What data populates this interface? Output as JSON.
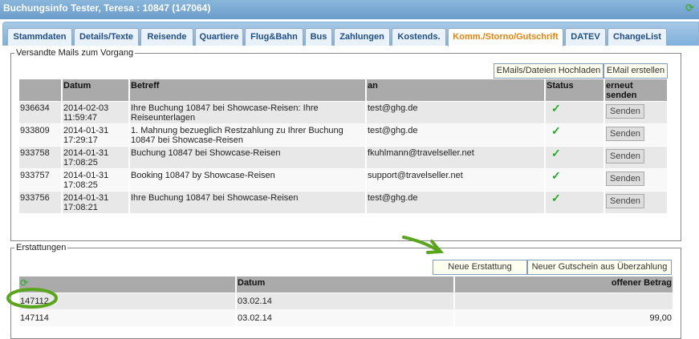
{
  "window": {
    "title": "Buchungsinfo Tester, Teresa : 10847 (147064)"
  },
  "tabs": [
    {
      "label": "Stammdaten"
    },
    {
      "label": "Details/Texte"
    },
    {
      "label": "Reisende"
    },
    {
      "label": "Quartiere"
    },
    {
      "label": "Flug&Bahn"
    },
    {
      "label": "Bus"
    },
    {
      "label": "Zahlungen"
    },
    {
      "label": "Kostends."
    },
    {
      "label": "Komm./Storno/Gutschrift",
      "active": true
    },
    {
      "label": "DATEV"
    },
    {
      "label": "ChangeList"
    }
  ],
  "mails": {
    "legend": "Versandte Mails zum Vorgang",
    "upload_label": "EMails/Dateien Hochladen",
    "create_label": "EMail erstellen",
    "headers": {
      "id": "",
      "datum": "Datum",
      "betreff": "Betreff",
      "an": "an",
      "status": "Status",
      "resend": "erneut senden"
    },
    "rows": [
      {
        "id": "936634",
        "datum": "2014-02-03 11:59:47",
        "betreff": "Ihre Buchung 10847 bei Showcase-Reisen: Ihre Reiseunterlagen",
        "an": "test@ghg.de",
        "status": "sent",
        "button": "Senden"
      },
      {
        "id": "933809",
        "datum": "2014-01-31 17:29:17",
        "betreff": "1. Mahnung bezueglich Restzahlung zu Ihrer Buchung 10847 bei Showcase-Reisen",
        "an": "test@ghg.de",
        "status": "sent",
        "button": "Senden"
      },
      {
        "id": "933758",
        "datum": "2014-01-31 17:08:25",
        "betreff": "Buchung 10847 bei Showcase-Reisen",
        "an": "fkuhlmann@travelseller.net",
        "status": "sent",
        "button": "Senden"
      },
      {
        "id": "933757",
        "datum": "2014-01-31 17:08:25",
        "betreff": "Booking 10847 by Showcase-Reisen",
        "an": "support@travelseller.net",
        "status": "sent",
        "button": "Senden"
      },
      {
        "id": "933756",
        "datum": "2014-01-31 17:08:21",
        "betreff": "Ihre Buchung 10847 bei Showcase-Reisen",
        "an": "test@ghg.de",
        "status": "sent",
        "button": "Senden"
      }
    ]
  },
  "refunds": {
    "legend": "Erstattungen",
    "new_refund_label": "Neue Erstattung",
    "new_voucher_label": "Neuer Gutschein aus Überzahlung",
    "headers": {
      "datum": "Datum",
      "betrag": "offener Betrag"
    },
    "rows": [
      {
        "id": "147112",
        "datum": "03.02.14",
        "betrag": ""
      },
      {
        "id": "147114",
        "datum": "03.02.14",
        "betrag": "99,00"
      }
    ]
  },
  "colors": {
    "accent": "#e8820c",
    "annotation": "#5aa51e",
    "check": "#22aa22"
  }
}
